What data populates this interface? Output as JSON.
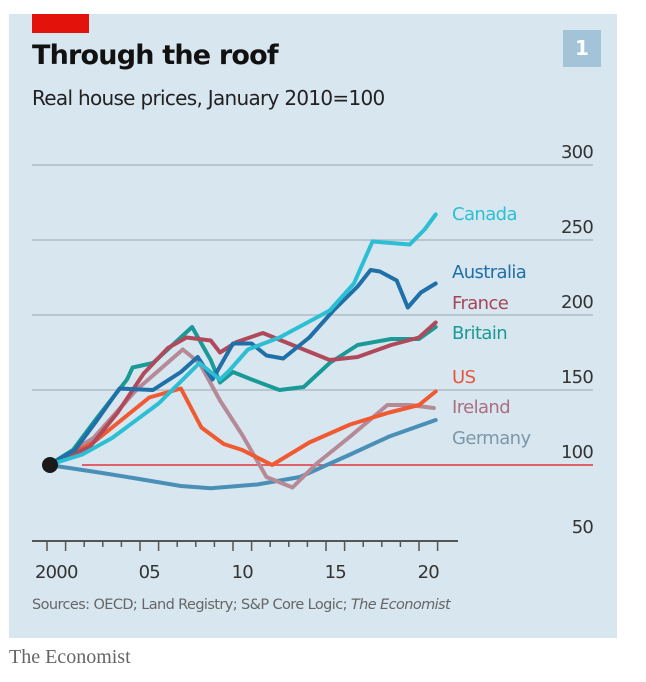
{
  "header": {
    "title": "Through the roof",
    "subtitle": "Real house prices, January 2010=100",
    "chart_number": "1"
  },
  "sources": {
    "prefix": "Sources: OECD; Land Registry; S&P Core Logic; ",
    "italic": "The Economist"
  },
  "footer": {
    "publisher": "The Economist"
  },
  "chart_data": {
    "type": "line",
    "title": "Through the roof",
    "subtitle": "Real house prices, January 2010=100",
    "xlabel": "",
    "ylabel": "",
    "xlim": [
      2000,
      2022
    ],
    "ylim": [
      50,
      300
    ],
    "yticks": [
      50,
      100,
      150,
      200,
      250,
      300
    ],
    "ytick_labels": [
      "50",
      "100",
      "150",
      "200",
      "250",
      "300"
    ],
    "xtick_labels": [
      {
        "year": 2000,
        "label": "2000"
      },
      {
        "year": 2005,
        "label": "05"
      },
      {
        "year": 2010,
        "label": "10"
      },
      {
        "year": 2015,
        "label": "15"
      },
      {
        "year": 2020,
        "label": "20"
      }
    ],
    "grid": true,
    "reference_line": {
      "value": 100,
      "color": "#e0606a"
    },
    "start_marker": {
      "x": 2000.1,
      "y": 100,
      "color": "#1a1a1a"
    },
    "legend": "direct-labels-right",
    "series": [
      {
        "name": "Canada",
        "color": "#2cbfd4",
        "label_value": 267,
        "points": [
          [
            2000.1,
            100
          ],
          [
            2001.9,
            107
          ],
          [
            2003.5,
            118
          ],
          [
            2006,
            141
          ],
          [
            2008.2,
            168
          ],
          [
            2009.3,
            157
          ],
          [
            2009.8,
            163
          ],
          [
            2010.8,
            177
          ],
          [
            2012.5,
            185
          ],
          [
            2014.3,
            197
          ],
          [
            2015.2,
            203
          ],
          [
            2016.5,
            221
          ],
          [
            2017.5,
            249
          ],
          [
            2018.5,
            248
          ],
          [
            2019.5,
            247
          ],
          [
            2020.3,
            257
          ],
          [
            2020.9,
            267
          ]
        ]
      },
      {
        "name": "Australia",
        "color": "#1f6fa8",
        "label_value": 221,
        "points": [
          [
            2000.1,
            100
          ],
          [
            2001.5,
            110
          ],
          [
            2002.7,
            130
          ],
          [
            2003.9,
            151
          ],
          [
            2005.7,
            150
          ],
          [
            2007.2,
            162
          ],
          [
            2008.1,
            172
          ],
          [
            2008.9,
            157
          ],
          [
            2010,
            181
          ],
          [
            2011,
            181
          ],
          [
            2011.8,
            173
          ],
          [
            2012.7,
            171
          ],
          [
            2014.1,
            185
          ],
          [
            2015.4,
            203
          ],
          [
            2016.7,
            219
          ],
          [
            2017.4,
            230
          ],
          [
            2017.9,
            229
          ],
          [
            2018.8,
            223
          ],
          [
            2019.4,
            205
          ],
          [
            2020.1,
            215
          ],
          [
            2020.9,
            221
          ]
        ]
      },
      {
        "name": "France",
        "color": "#b04a5a",
        "label_value": 195,
        "points": [
          [
            2000.1,
            100
          ],
          [
            2002.3,
            112
          ],
          [
            2003.8,
            135
          ],
          [
            2005.2,
            161
          ],
          [
            2006.5,
            178
          ],
          [
            2007.5,
            185
          ],
          [
            2008.8,
            183
          ],
          [
            2009.3,
            175
          ],
          [
            2010.2,
            182
          ],
          [
            2011.6,
            188
          ],
          [
            2013.4,
            179
          ],
          [
            2015.2,
            170
          ],
          [
            2016.7,
            172
          ],
          [
            2018.5,
            180
          ],
          [
            2020,
            185
          ],
          [
            2020.9,
            195
          ]
        ]
      },
      {
        "name": "Britain",
        "color": "#1a9a96",
        "label_value": 192,
        "points": [
          [
            2000.1,
            100
          ],
          [
            2001.4,
            110
          ],
          [
            2002.6,
            130
          ],
          [
            2004.3,
            157
          ],
          [
            2004.6,
            165
          ],
          [
            2005.7,
            168
          ],
          [
            2007.8,
            192
          ],
          [
            2008.8,
            170
          ],
          [
            2009.3,
            155
          ],
          [
            2010,
            162
          ],
          [
            2011,
            157
          ],
          [
            2012.5,
            150
          ],
          [
            2013.8,
            152
          ],
          [
            2015.2,
            168
          ],
          [
            2016.7,
            180
          ],
          [
            2018.5,
            184
          ],
          [
            2020,
            184
          ],
          [
            2020.9,
            192
          ]
        ]
      },
      {
        "name": "US",
        "color": "#f05a32",
        "label_value": 149,
        "points": [
          [
            2000.1,
            100
          ],
          [
            2002.5,
            115
          ],
          [
            2004.5,
            135
          ],
          [
            2005.5,
            145
          ],
          [
            2007.2,
            151
          ],
          [
            2008.3,
            125
          ],
          [
            2009.5,
            114
          ],
          [
            2010.5,
            110
          ],
          [
            2012.1,
            100
          ],
          [
            2014.1,
            115
          ],
          [
            2016.3,
            127
          ],
          [
            2018.4,
            135
          ],
          [
            2020,
            140
          ],
          [
            2020.9,
            149
          ]
        ]
      },
      {
        "name": "Ireland",
        "color": "#b58a96",
        "label_value": 138,
        "points": [
          [
            2000.1,
            100
          ],
          [
            2002.5,
            118
          ],
          [
            2004.8,
            150
          ],
          [
            2007.3,
            177
          ],
          [
            2008.2,
            168
          ],
          [
            2009.3,
            143
          ],
          [
            2010.5,
            120
          ],
          [
            2011.8,
            92
          ],
          [
            2013.2,
            85
          ],
          [
            2014.5,
            101
          ],
          [
            2016.3,
            119
          ],
          [
            2018.3,
            140
          ],
          [
            2019.5,
            140
          ],
          [
            2020.8,
            138
          ]
        ]
      },
      {
        "name": "Germany",
        "color": "#4a8fb5",
        "label_value": 130,
        "points": [
          [
            2000.1,
            100
          ],
          [
            2001.2,
            98
          ],
          [
            2002.8,
            95
          ],
          [
            2004.8,
            91
          ],
          [
            2007.2,
            86
          ],
          [
            2008.8,
            84.5
          ],
          [
            2011.3,
            87
          ],
          [
            2013.6,
            92
          ],
          [
            2016.3,
            107
          ],
          [
            2018.4,
            119
          ],
          [
            2020.9,
            130
          ]
        ]
      }
    ]
  }
}
